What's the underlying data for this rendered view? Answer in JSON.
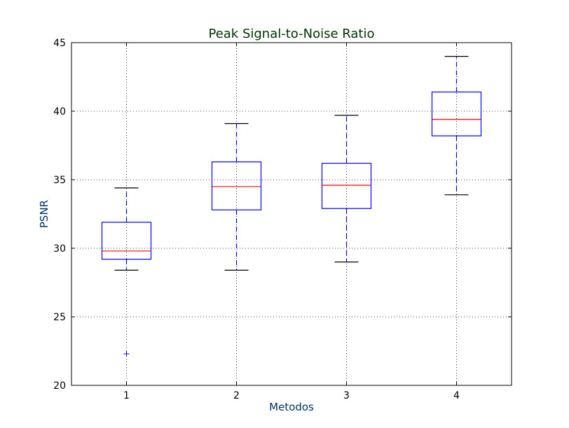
{
  "chart_data": {
    "type": "box",
    "title": "Peak Signal-to-Noise Ratio",
    "xlabel": "Metodos",
    "ylabel": "PSNR",
    "ylim": [
      20,
      45
    ],
    "yticks": [
      20,
      25,
      30,
      35,
      40,
      45
    ],
    "categories": [
      "1",
      "2",
      "3",
      "4"
    ],
    "grid": true,
    "boxes": [
      {
        "category": "1",
        "whisker_low": 28.4,
        "q1": 29.2,
        "median": 29.8,
        "q3": 31.9,
        "whisker_high": 34.4,
        "outliers": [
          22.3
        ]
      },
      {
        "category": "2",
        "whisker_low": 28.4,
        "q1": 32.8,
        "median": 34.5,
        "q3": 36.3,
        "whisker_high": 39.1,
        "outliers": []
      },
      {
        "category": "3",
        "whisker_low": 29.0,
        "q1": 32.9,
        "median": 34.6,
        "q3": 36.2,
        "whisker_high": 39.7,
        "outliers": []
      },
      {
        "category": "4",
        "whisker_low": 33.9,
        "q1": 38.2,
        "median": 39.4,
        "q3": 41.4,
        "whisker_high": 44.0,
        "outliers": []
      }
    ],
    "colors": {
      "box": "#0000ff",
      "median": "#ff0000",
      "whisker": "#0000ff",
      "cap": "#000000",
      "outlier": "#0000ff",
      "grid": "#000000",
      "title": "#003300",
      "axis_label": "#003366"
    }
  }
}
